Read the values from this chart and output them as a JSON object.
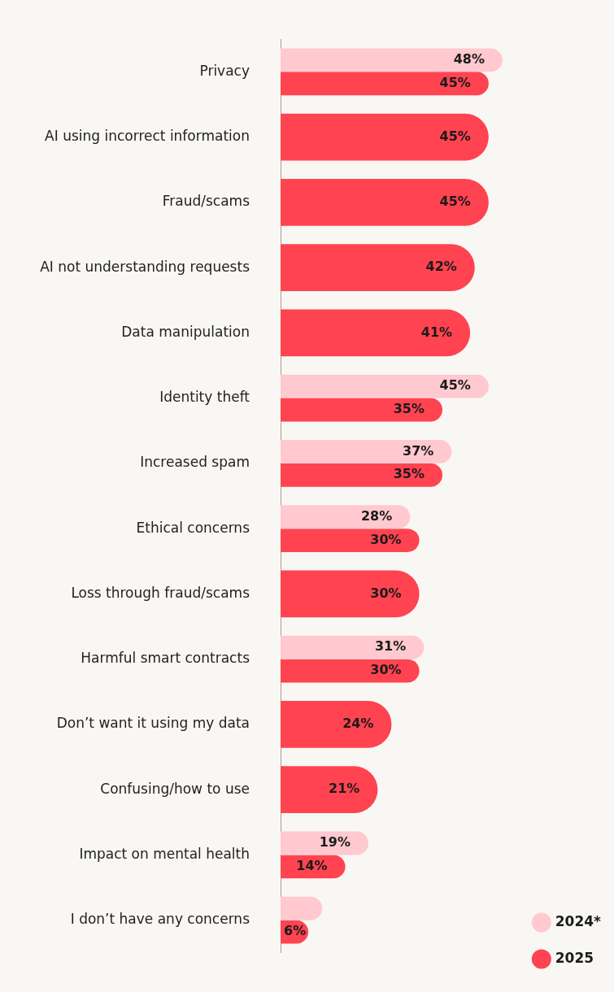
{
  "chart_data": {
    "type": "bar",
    "orientation": "horizontal",
    "categories": [
      "Privacy",
      "AI using incorrect information",
      "Fraud/scams",
      "AI not understanding requests",
      "Data manipulation",
      "Identity theft",
      "Increased spam",
      "Ethical concerns",
      "Loss through fraud/scams",
      "Harmful smart contracts",
      "Don’t want it using my data",
      "Confusing/how to use",
      "Impact on mental health",
      "I don’t have any concerns"
    ],
    "series": [
      {
        "name": "2024*",
        "color": "#ffc9cf",
        "values": [
          48,
          null,
          null,
          null,
          null,
          45,
          37,
          28,
          null,
          31,
          null,
          null,
          19,
          9
        ],
        "value_labels": [
          "48%",
          null,
          null,
          null,
          null,
          "45%",
          "37%",
          "28%",
          null,
          "31%",
          null,
          null,
          "19%",
          null
        ]
      },
      {
        "name": "2025",
        "color": "#ff4351",
        "values": [
          45,
          45,
          45,
          42,
          41,
          35,
          35,
          30,
          30,
          30,
          24,
          21,
          14,
          6
        ],
        "value_labels": [
          "45%",
          "45%",
          "45%",
          "42%",
          "41%",
          "35%",
          "35%",
          "30%",
          "30%",
          "30%",
          "24%",
          "21%",
          "14%",
          "6%"
        ]
      }
    ],
    "tick_labels": "y",
    "grid": false,
    "legend": "bottom right"
  }
}
